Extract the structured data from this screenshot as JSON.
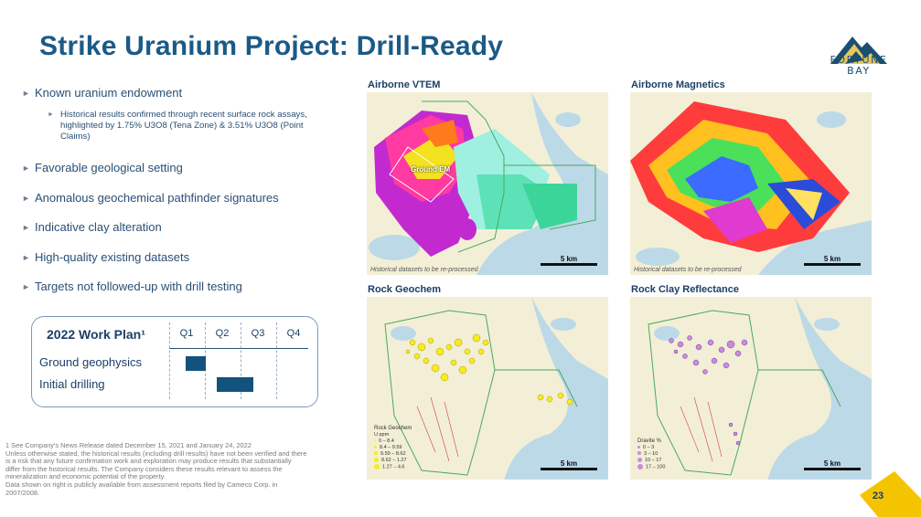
{
  "title": "Strike Uranium Project: Drill-Ready",
  "logo": {
    "line1": "FORTUNE",
    "line2": "BAY"
  },
  "bullets": [
    {
      "text": "Known uranium endowment"
    },
    {
      "text": "Favorable geological setting"
    },
    {
      "text": "Anomalous geochemical pathfinder signatures"
    },
    {
      "text": "Indicative clay alteration"
    },
    {
      "text": "High-quality existing datasets"
    },
    {
      "text": "Targets not followed-up with drill testing"
    }
  ],
  "sub_bullet": "Historical results confirmed through recent surface rock assays, highlighted by 1.75% U3O8 (Tena Zone) & 3.51% U3O8 (Point Claims)",
  "work_plan": {
    "title": "2022 Work Plan¹",
    "quarters": [
      "Q1",
      "Q2",
      "Q3",
      "Q4"
    ],
    "tasks": [
      {
        "name": "Ground geophysics",
        "start_quarter": 1,
        "end_quarter": 1
      },
      {
        "name": "Initial drilling",
        "start_quarter": 2,
        "end_quarter": 3
      }
    ]
  },
  "footnote": "1 See Company's News Release dated December 15, 2021 and January 24, 2022\nUnless otherwise stated, the historical results (including drill results) have not been verified and there is a risk that any future confirmation work and exploration may produce results that substantially differ from the historical results. The Company considers these results relevant to assess the mineralization and economic potential of the property.\nData shown on right is publicly available from assessment reports filed by Cameco Corp. in 2007/2008.",
  "panels": {
    "vtem": {
      "label": "Airborne VTEM",
      "note": "Historical datasets to be re-processed",
      "scale": "5 km",
      "tag": "Ground EM"
    },
    "magnetics": {
      "label": "Airborne Magnetics",
      "note": "Historical datasets to be re-processed",
      "scale": "5 km"
    },
    "geochem": {
      "label": "Rock Geochem",
      "scale": "5 km",
      "legend_title": "Rock Geochem",
      "legend_unit": "U ppm",
      "legend_items": [
        "0 – 8.4",
        "8.4 – 9.59",
        "9.59 – 8.62",
        "8.62 – 1.27",
        "1.27 – 4.6"
      ]
    },
    "clay": {
      "label": "Rock Clay Reflectance",
      "scale": "5 km",
      "legend_title": "Dravite %",
      "legend_items": [
        "0 – 3",
        "3 – 10",
        "10 – 17",
        "17 – 100"
      ]
    }
  },
  "page_number": "23",
  "colors": {
    "title": "#1b5a86",
    "bar": "#14527e",
    "accent_yellow": "#f5c400"
  }
}
